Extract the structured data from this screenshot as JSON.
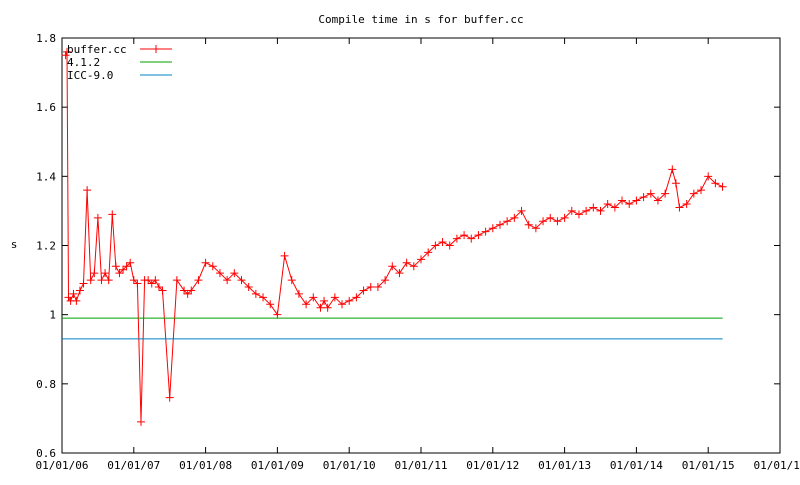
{
  "chart_data": {
    "type": "line",
    "title": "Compile time in s for buffer.cc",
    "xlabel": "",
    "ylabel": "s",
    "ylim": [
      0.6,
      1.8
    ],
    "y_ticks": [
      "0.6",
      "0.8",
      "1",
      "1.2",
      "1.4",
      "1.6",
      "1.8"
    ],
    "y_tick_values": [
      0.6,
      0.8,
      1.0,
      1.2,
      1.4,
      1.6,
      1.8
    ],
    "x_ticks": [
      "01/01/06",
      "01/01/07",
      "01/01/08",
      "01/01/09",
      "01/01/10",
      "01/01/11",
      "01/01/12",
      "01/01/13",
      "01/01/14",
      "01/01/15",
      "01/01/16"
    ],
    "x_tick_years": [
      2006,
      2007,
      2008,
      2009,
      2010,
      2011,
      2012,
      2013,
      2014,
      2015,
      2016
    ],
    "xlim_years": [
      2006,
      2016
    ],
    "grid": false,
    "legend_position": "top-left",
    "series": [
      {
        "name": "buffer.cc",
        "color": "#ff0000",
        "marker": "plus",
        "x_years": [
          2006.05,
          2006.07,
          2006.09,
          2006.12,
          2006.16,
          2006.2,
          2006.25,
          2006.3,
          2006.35,
          2006.4,
          2006.45,
          2006.5,
          2006.55,
          2006.6,
          2006.65,
          2006.7,
          2006.75,
          2006.8,
          2006.85,
          2006.9,
          2006.95,
          2007.0,
          2007.05,
          2007.1,
          2007.15,
          2007.2,
          2007.25,
          2007.3,
          2007.35,
          2007.4,
          2007.5,
          2007.6,
          2007.7,
          2007.75,
          2007.8,
          2007.9,
          2008.0,
          2008.1,
          2008.2,
          2008.3,
          2008.4,
          2008.5,
          2008.6,
          2008.7,
          2008.8,
          2008.9,
          2009.0,
          2009.1,
          2009.2,
          2009.3,
          2009.4,
          2009.5,
          2009.6,
          2009.65,
          2009.7,
          2009.8,
          2009.9,
          2010.0,
          2010.1,
          2010.2,
          2010.3,
          2010.4,
          2010.5,
          2010.6,
          2010.7,
          2010.8,
          2010.9,
          2011.0,
          2011.1,
          2011.2,
          2011.3,
          2011.4,
          2011.5,
          2011.6,
          2011.7,
          2011.8,
          2011.9,
          2012.0,
          2012.1,
          2012.2,
          2012.3,
          2012.4,
          2012.5,
          2012.6,
          2012.7,
          2012.8,
          2012.9,
          2013.0,
          2013.1,
          2013.2,
          2013.3,
          2013.4,
          2013.5,
          2013.6,
          2013.7,
          2013.8,
          2013.9,
          2014.0,
          2014.1,
          2014.2,
          2014.3,
          2014.4,
          2014.5,
          2014.55,
          2014.6,
          2014.7,
          2014.8,
          2014.9,
          2015.0,
          2015.1,
          2015.2
        ],
        "values": [
          1.75,
          1.76,
          1.05,
          1.04,
          1.06,
          1.04,
          1.07,
          1.09,
          1.36,
          1.1,
          1.12,
          1.28,
          1.1,
          1.12,
          1.1,
          1.29,
          1.14,
          1.12,
          1.13,
          1.14,
          1.15,
          1.1,
          1.09,
          0.69,
          1.1,
          1.1,
          1.09,
          1.1,
          1.08,
          1.07,
          0.76,
          1.1,
          1.07,
          1.06,
          1.07,
          1.1,
          1.15,
          1.14,
          1.12,
          1.1,
          1.12,
          1.1,
          1.08,
          1.06,
          1.05,
          1.03,
          1.0,
          1.17,
          1.1,
          1.06,
          1.03,
          1.05,
          1.02,
          1.04,
          1.02,
          1.05,
          1.03,
          1.04,
          1.05,
          1.07,
          1.08,
          1.08,
          1.1,
          1.14,
          1.12,
          1.15,
          1.14,
          1.16,
          1.18,
          1.2,
          1.21,
          1.2,
          1.22,
          1.23,
          1.22,
          1.23,
          1.24,
          1.25,
          1.26,
          1.27,
          1.28,
          1.3,
          1.26,
          1.25,
          1.27,
          1.28,
          1.27,
          1.28,
          1.3,
          1.29,
          1.3,
          1.31,
          1.3,
          1.32,
          1.31,
          1.33,
          1.32,
          1.33,
          1.34,
          1.35,
          1.33,
          1.35,
          1.42,
          1.38,
          1.31,
          1.32,
          1.35,
          1.36,
          1.4,
          1.38,
          1.37
        ]
      },
      {
        "name": "4.1.2",
        "color": "#00a000",
        "x_years": [
          2006.0,
          2015.2
        ],
        "values": [
          0.99,
          0.99
        ]
      },
      {
        "name": "ICC-9.0",
        "color": "#0080c0",
        "x_years": [
          2006.0,
          2015.2
        ],
        "values": [
          0.93,
          0.93
        ]
      }
    ]
  }
}
